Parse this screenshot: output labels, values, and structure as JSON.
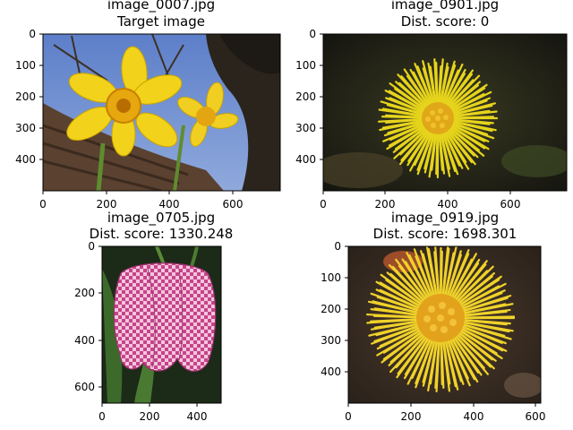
{
  "subplots": [
    {
      "filename": "image_0007.jpg",
      "subtitle": "Target image",
      "xticks": [
        "0",
        "200",
        "400",
        "600"
      ],
      "yticks": [
        "0",
        "100",
        "200",
        "300",
        "400"
      ],
      "image_size": {
        "width": 750,
        "height": 500
      },
      "picture": "yellow-daffodils-against-blue-sky"
    },
    {
      "filename": "image_0901.jpg",
      "subtitle": "Dist. score: 0",
      "xticks": [
        "0",
        "200",
        "400",
        "600"
      ],
      "yticks": [
        "0",
        "100",
        "200",
        "300",
        "400"
      ],
      "image_size": {
        "width": 780,
        "height": 500
      },
      "picture": "yellow-coltsfoot-flower-dark-background"
    },
    {
      "filename": "image_0705.jpg",
      "subtitle": "Dist. score: 1330.248",
      "xticks": [
        "0",
        "200",
        "400"
      ],
      "yticks": [
        "0",
        "200",
        "400",
        "600"
      ],
      "image_size": {
        "width": 500,
        "height": 670
      },
      "picture": "pink-checkered-fritillary-flower"
    },
    {
      "filename": "image_0919.jpg",
      "subtitle": "Dist. score: 1698.301",
      "xticks": [
        "0",
        "200",
        "400",
        "600"
      ],
      "yticks": [
        "0",
        "100",
        "200",
        "300",
        "400"
      ],
      "image_size": {
        "width": 620,
        "height": 500
      },
      "picture": "yellow-coltsfoot-flower-soil-background"
    }
  ]
}
